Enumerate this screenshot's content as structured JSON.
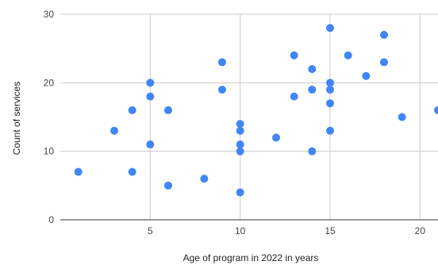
{
  "chart_data": {
    "type": "scatter",
    "title": "",
    "xlabel": "Age of program in 2022 in years",
    "ylabel": "Count of services",
    "xlim": [
      0,
      21
    ],
    "ylim": [
      0,
      30
    ],
    "x_ticks": [
      5,
      10,
      15,
      20
    ],
    "y_ticks": [
      0,
      10,
      20,
      30
    ],
    "grid": true,
    "legend": "none",
    "point_color": "#4285f4",
    "series": [
      {
        "points": [
          {
            "x": 1,
            "y": 7
          },
          {
            "x": 3,
            "y": 13
          },
          {
            "x": 4,
            "y": 16
          },
          {
            "x": 4,
            "y": 7
          },
          {
            "x": 5,
            "y": 20
          },
          {
            "x": 5,
            "y": 18
          },
          {
            "x": 5,
            "y": 11
          },
          {
            "x": 6,
            "y": 16
          },
          {
            "x": 6,
            "y": 5
          },
          {
            "x": 8,
            "y": 6
          },
          {
            "x": 9,
            "y": 23
          },
          {
            "x": 9,
            "y": 19
          },
          {
            "x": 10,
            "y": 14
          },
          {
            "x": 10,
            "y": 13
          },
          {
            "x": 10,
            "y": 11
          },
          {
            "x": 10,
            "y": 10
          },
          {
            "x": 10,
            "y": 4
          },
          {
            "x": 12,
            "y": 12
          },
          {
            "x": 13,
            "y": 24
          },
          {
            "x": 13,
            "y": 18
          },
          {
            "x": 14,
            "y": 22
          },
          {
            "x": 14,
            "y": 19
          },
          {
            "x": 14,
            "y": 10
          },
          {
            "x": 15,
            "y": 28
          },
          {
            "x": 15,
            "y": 20
          },
          {
            "x": 15,
            "y": 19
          },
          {
            "x": 15,
            "y": 17
          },
          {
            "x": 15,
            "y": 13
          },
          {
            "x": 16,
            "y": 24
          },
          {
            "x": 17,
            "y": 21
          },
          {
            "x": 18,
            "y": 27
          },
          {
            "x": 18,
            "y": 23
          },
          {
            "x": 19,
            "y": 15
          },
          {
            "x": 21,
            "y": 16
          }
        ]
      }
    ]
  }
}
